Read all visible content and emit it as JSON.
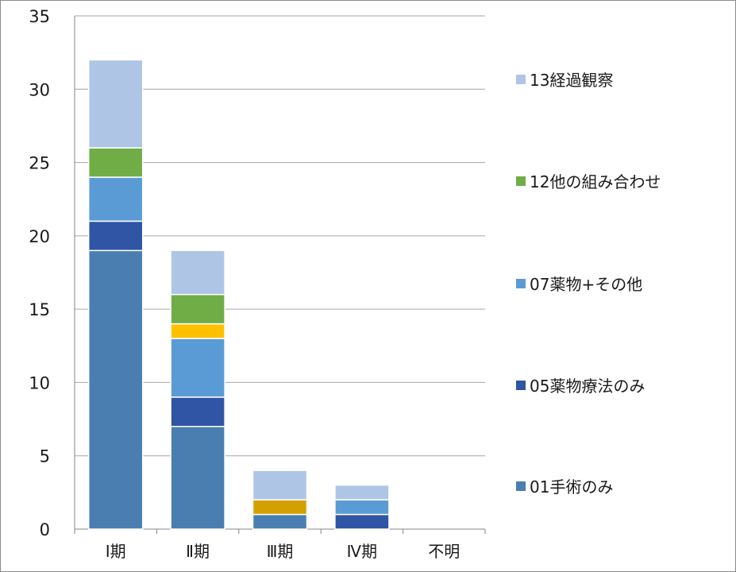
{
  "chart_data": {
    "type": "bar",
    "stacked": true,
    "categories": [
      "Ⅰ期",
      "Ⅱ期",
      "Ⅲ期",
      "Ⅳ期",
      "不明"
    ],
    "ylim": [
      0,
      35
    ],
    "yticks": [
      0,
      5,
      10,
      15,
      20,
      25,
      30,
      35
    ],
    "grid": true,
    "legend_position": "right",
    "series": [
      {
        "name": "01手術のみ",
        "color": "#4a7eb0",
        "values": [
          19,
          7,
          1,
          0,
          0
        ]
      },
      {
        "name": "05薬物療法のみ",
        "color": "#2f55a4",
        "values": [
          2,
          2,
          0,
          1,
          0
        ]
      },
      {
        "name": "07薬物+その他",
        "color": "#5b9bd5",
        "values": [
          3,
          4,
          0,
          1,
          0
        ]
      },
      {
        "name": "",
        "color": "#ffc000",
        "values": [
          0,
          1,
          0,
          0,
          0
        ]
      },
      {
        "name": "",
        "color": "#d4a000",
        "values": [
          0,
          0,
          1,
          0,
          0
        ]
      },
      {
        "name": "12他の組み合わせ",
        "color": "#70ad47",
        "values": [
          2,
          2,
          0,
          0,
          0
        ]
      },
      {
        "name": "13経過観察",
        "color": "#aec5e6",
        "values": [
          6,
          3,
          2,
          1,
          0
        ]
      }
    ],
    "legend": [
      {
        "series_index": 6,
        "label": "13経過観察"
      },
      {
        "series_index": 5,
        "label": "12他の組み合わせ"
      },
      {
        "series_index": 2,
        "label": "07薬物+その他"
      },
      {
        "series_index": 1,
        "label": "05薬物療法のみ"
      },
      {
        "series_index": 0,
        "label": "01手術のみ"
      }
    ]
  }
}
